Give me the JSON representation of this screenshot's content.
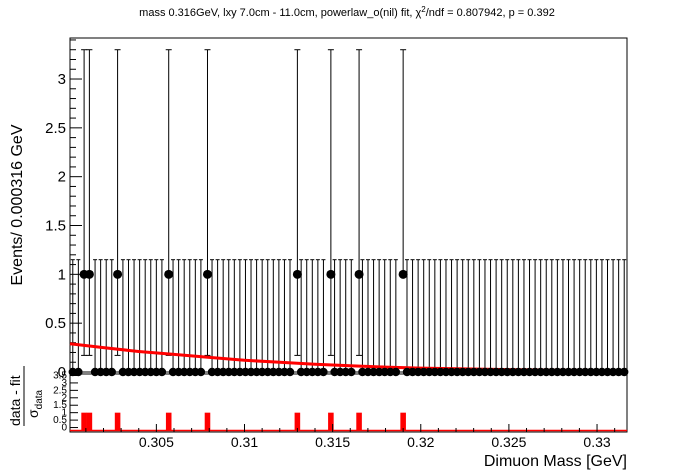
{
  "title": {
    "main": "mass 0.316GeV, lxy 7.0cm - 11.0cm, powerlaw_o(nil) fit, ",
    "chi_symbol": "χ",
    "chi_sup": "2",
    "main_tail": "/ndf = 0.807942, p = 0.392"
  },
  "colors": {
    "data": "#000000",
    "fit": "#ff0000",
    "residual": "#ff0000",
    "frame": "#000000",
    "background": "#ffffff"
  },
  "chart_data": [
    {
      "type": "scatter",
      "panel": "main",
      "ylabel": "Events/ 0.000316 GeV",
      "xlim": [
        0.3001,
        0.3317
      ],
      "ylim": [
        0,
        3.42
      ],
      "yticks": [
        0,
        0.5,
        1,
        1.5,
        2,
        2.5,
        3
      ],
      "ytick_labels": [
        "0",
        "0.5",
        "1",
        "1.5",
        "2",
        "2.5",
        "3"
      ],
      "bin_width": 0.000316,
      "n_bins": 100,
      "nonzero_bins": [
        {
          "x": 0.3009,
          "y": 1,
          "err_low": 0.83,
          "err_high": 2.3
        },
        {
          "x": 0.3012,
          "y": 1,
          "err_low": 0.83,
          "err_high": 2.3
        },
        {
          "x": 0.3028,
          "y": 1,
          "err_low": 0.83,
          "err_high": 2.3
        },
        {
          "x": 0.3057,
          "y": 1,
          "err_low": 0.83,
          "err_high": 2.3
        },
        {
          "x": 0.3079,
          "y": 1,
          "err_low": 0.83,
          "err_high": 2.3
        },
        {
          "x": 0.313,
          "y": 1,
          "err_low": 0.83,
          "err_high": 2.3
        },
        {
          "x": 0.3149,
          "y": 1,
          "err_low": 0.83,
          "err_high": 2.3
        },
        {
          "x": 0.3165,
          "y": 1,
          "err_low": 0.83,
          "err_high": 2.3
        },
        {
          "x": 0.319,
          "y": 1,
          "err_low": 0.0,
          "err_high": 2.3
        }
      ],
      "zero_bin_err_high": 1.15,
      "fit_curve": {
        "name": "powerlaw_o(nil) fit",
        "x": [
          0.3001,
          0.302,
          0.304,
          0.306,
          0.308,
          0.31,
          0.312,
          0.314,
          0.316,
          0.318,
          0.32,
          0.325,
          0.33,
          0.3317
        ],
        "y": [
          0.29,
          0.25,
          0.21,
          0.18,
          0.15,
          0.12,
          0.1,
          0.08,
          0.065,
          0.05,
          0.04,
          0.025,
          0.015,
          0.012
        ]
      }
    },
    {
      "type": "bar",
      "panel": "residual",
      "ylabel_num": "data - fit",
      "ylabel_den": "σ",
      "ylabel_den_sub": "data",
      "xlabel": "Dimuon Mass [GeV]",
      "xlim": [
        0.3001,
        0.3317
      ],
      "ylim": [
        -0.3,
        3.6
      ],
      "yticks": [
        0,
        0.5,
        1,
        1.5,
        2,
        2.5,
        3,
        3.5
      ],
      "ytick_labels": [
        "0",
        "0.5",
        "1",
        "1.5",
        "2",
        "2.5",
        "3",
        "3.5"
      ],
      "xticks": [
        0.305,
        0.31,
        0.315,
        0.32,
        0.325,
        0.33
      ],
      "xtick_labels": [
        "0.305",
        "0.31",
        "0.315",
        "0.32",
        "0.325",
        "0.33"
      ],
      "bars": [
        {
          "x": 0.3009,
          "value": 1.0
        },
        {
          "x": 0.3012,
          "value": 1.0
        },
        {
          "x": 0.3028,
          "value": 1.0
        },
        {
          "x": 0.3057,
          "value": 1.0
        },
        {
          "x": 0.3079,
          "value": 1.0
        },
        {
          "x": 0.313,
          "value": 1.0
        },
        {
          "x": 0.3149,
          "value": 1.0
        },
        {
          "x": 0.3165,
          "value": 1.0
        },
        {
          "x": 0.319,
          "value": 1.0
        }
      ],
      "baseline_value": -0.2
    }
  ]
}
